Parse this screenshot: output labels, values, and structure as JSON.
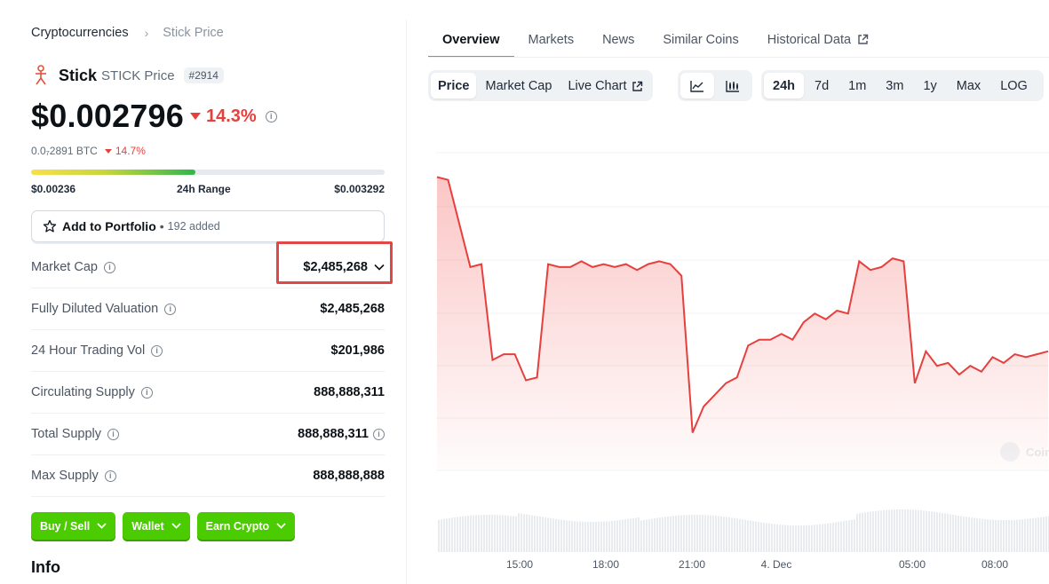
{
  "breadcrumb": {
    "parent": "Cryptocurrencies",
    "current": "Stick Price"
  },
  "coin": {
    "name": "Stick",
    "symbol_label": "STICK Price",
    "rank": "#2914"
  },
  "price": {
    "value": "$0.002796",
    "change": "14.3%",
    "btc_value": "0.0₇2891 BTC",
    "btc_change": "14.7%",
    "change_color": "#e5403e"
  },
  "range": {
    "low": "$0.00236",
    "label": "24h Range",
    "high": "$0.003292",
    "position_fraction": 0.465
  },
  "portfolio": {
    "label": "Add to Portfolio",
    "separator": "•",
    "added": "192 added"
  },
  "stats": [
    {
      "label": "Market Cap",
      "value": "$2,485,268"
    },
    {
      "label": "Fully Diluted Valuation",
      "value": "$2,485,268"
    },
    {
      "label": "24 Hour Trading Vol",
      "value": "$201,986"
    },
    {
      "label": "Circulating Supply",
      "value": "888,888,311"
    },
    {
      "label": "Total Supply",
      "value": "888,888,311"
    },
    {
      "label": "Max Supply",
      "value": "888,888,888"
    }
  ],
  "actions": {
    "buy_sell": "Buy / Sell",
    "wallet": "Wallet",
    "earn": "Earn Crypto"
  },
  "info_heading": "Info",
  "tabs": [
    "Overview",
    "Markets",
    "News",
    "Similar Coins",
    "Historical Data"
  ],
  "chart_controls": {
    "metric": [
      "Price",
      "Market Cap",
      "Live Chart"
    ],
    "chart_types": [
      "line-chart-icon",
      "candlestick-chart-icon"
    ],
    "ranges": [
      "24h",
      "7d",
      "1m",
      "3m",
      "1y",
      "Max",
      "LOG"
    ],
    "active_metric": "Price",
    "active_range": "24h"
  },
  "chart_data": {
    "type": "area",
    "x_tick_labels": [
      "15:00",
      "18:00",
      "21:00",
      "4. Dec",
      "05:00",
      "08:00"
    ],
    "series": [
      {
        "values": [
          0.00326,
          0.00325,
          0.0031,
          0.00295,
          0.00296,
          0.00263,
          0.00265,
          0.00265,
          0.00256,
          0.00257,
          0.00296,
          0.00295,
          0.00295,
          0.00297,
          0.00295,
          0.00296,
          0.00295,
          0.00296,
          0.00294,
          0.00296,
          0.00297,
          0.00296,
          0.00292,
          0.00238,
          0.00247,
          0.00251,
          0.00255,
          0.00257,
          0.00268,
          0.0027,
          0.0027,
          0.00272,
          0.0027,
          0.00276,
          0.00279,
          0.00277,
          0.0028,
          0.00279,
          0.00297,
          0.00294,
          0.00295,
          0.00298,
          0.00297,
          0.00255,
          0.00266,
          0.00261,
          0.00262,
          0.00258,
          0.00261,
          0.00259,
          0.00264,
          0.00262,
          0.00265,
          0.00264,
          0.00265,
          0.00266
        ]
      }
    ],
    "volume_note_values": [],
    "watermark": "Coin"
  }
}
